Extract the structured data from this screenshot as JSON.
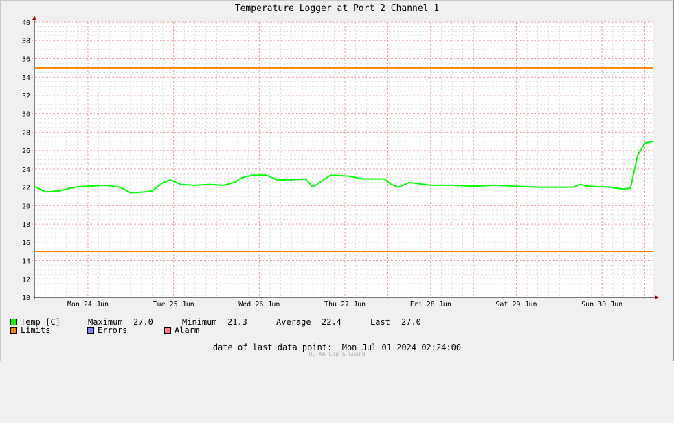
{
  "chart_data": {
    "type": "line",
    "title": "Temperature Logger at Port 2 Channel 1",
    "ylim": [
      10,
      40
    ],
    "yticks": [
      10,
      12,
      14,
      16,
      18,
      20,
      22,
      24,
      26,
      28,
      30,
      32,
      34,
      36,
      38,
      40
    ],
    "xlim": [
      "2024-06-23 21:00",
      "2024-07-01 02:24"
    ],
    "xtick_labels": [
      "Mon 24 Jun",
      "Tue 25 Jun",
      "Wed 26 Jun",
      "Thu 27 Jun",
      "Fri 28 Jun",
      "Sat 29 Jun",
      "Sun 30 Jun"
    ],
    "grid": true,
    "limits": {
      "upper": 35,
      "lower": 15,
      "color": "#ff7f00"
    },
    "series": [
      {
        "name": "Temp [C]",
        "color": "#00ff00",
        "points": [
          [
            "2024-06-23 21:00",
            22.1
          ],
          [
            "2024-06-24 00:00",
            21.5
          ],
          [
            "2024-06-24 04:00",
            21.6
          ],
          [
            "2024-06-24 08:00",
            22.0
          ],
          [
            "2024-06-24 12:00",
            22.1
          ],
          [
            "2024-06-24 17:00",
            22.2
          ],
          [
            "2024-06-24 21:00",
            22.0
          ],
          [
            "2024-06-25 00:00",
            21.4
          ],
          [
            "2024-06-25 04:00",
            21.5
          ],
          [
            "2024-06-25 06:00",
            21.6
          ],
          [
            "2024-06-25 09:00",
            22.5
          ],
          [
            "2024-06-25 11:00",
            22.8
          ],
          [
            "2024-06-25 14:00",
            22.3
          ],
          [
            "2024-06-25 18:00",
            22.2
          ],
          [
            "2024-06-25 22:00",
            22.3
          ],
          [
            "2024-06-26 02:00",
            22.2
          ],
          [
            "2024-06-26 05:00",
            22.5
          ],
          [
            "2024-06-26 07:00",
            23.0
          ],
          [
            "2024-06-26 10:00",
            23.3
          ],
          [
            "2024-06-26 14:00",
            23.3
          ],
          [
            "2024-06-26 17:00",
            22.8
          ],
          [
            "2024-06-26 21:00",
            22.8
          ],
          [
            "2024-06-27 01:00",
            22.9
          ],
          [
            "2024-06-27 03:00",
            22.0
          ],
          [
            "2024-06-27 06:00",
            22.8
          ],
          [
            "2024-06-27 08:00",
            23.3
          ],
          [
            "2024-06-27 13:00",
            23.2
          ],
          [
            "2024-06-27 17:00",
            22.9
          ],
          [
            "2024-06-27 23:00",
            22.9
          ],
          [
            "2024-06-28 01:00",
            22.3
          ],
          [
            "2024-06-28 03:00",
            22.0
          ],
          [
            "2024-06-28 06:00",
            22.5
          ],
          [
            "2024-06-28 12:00",
            22.2
          ],
          [
            "2024-06-28 18:00",
            22.2
          ],
          [
            "2024-06-29 00:00",
            22.1
          ],
          [
            "2024-06-29 06:00",
            22.2
          ],
          [
            "2024-06-29 12:00",
            22.1
          ],
          [
            "2024-06-29 18:00",
            22.0
          ],
          [
            "2024-06-30 00:00",
            22.0
          ],
          [
            "2024-06-30 04:00",
            22.0
          ],
          [
            "2024-06-30 06:00",
            22.3
          ],
          [
            "2024-06-30 08:00",
            22.1
          ],
          [
            "2024-06-30 14:00",
            22.0
          ],
          [
            "2024-06-30 18:00",
            21.8
          ],
          [
            "2024-06-30 20:00",
            21.9
          ],
          [
            "2024-06-30 22:00",
            25.5
          ],
          [
            "2024-07-01 00:00",
            26.8
          ],
          [
            "2024-07-01 02:24",
            27.0
          ]
        ]
      }
    ]
  },
  "legend": {
    "temp_label": "Temp [C]",
    "maximum_label": "Maximum",
    "maximum_value": "27.0",
    "minimum_label": "Minimum",
    "minimum_value": "21.3",
    "average_label": "Average",
    "average_value": "22.4",
    "last_label": "Last",
    "last_value": "27.0",
    "limits_label": "Limits",
    "errors_label": "Errors",
    "alarm_label": "Alarm",
    "colors": {
      "temp": "#00ff00",
      "limits": "#ff7f00",
      "errors": "#7f7fff",
      "alarm": "#ff7f7f"
    }
  },
  "footer": {
    "last_point_label": "date of last data point:",
    "last_point_value": "Mon Jul 01 2024 02:24:00",
    "watermark": "OCTAA Log & Guard"
  }
}
